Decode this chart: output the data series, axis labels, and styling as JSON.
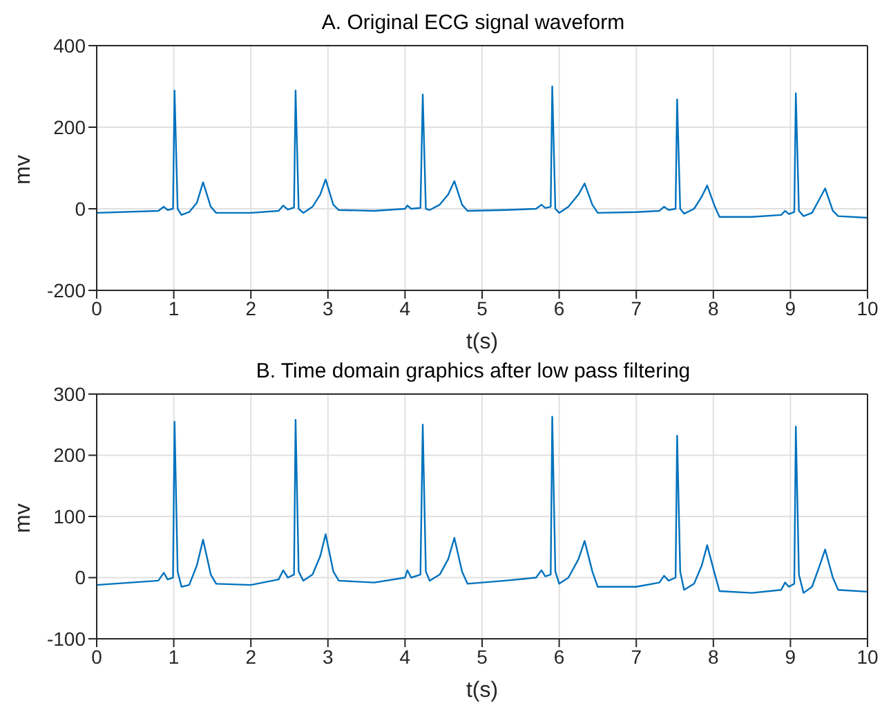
{
  "chart_data": [
    {
      "type": "line",
      "title": "A. Original ECG signal waveform",
      "xlabel": "t(s)",
      "ylabel": "mv",
      "x": [
        0,
        0.8,
        0.87,
        0.92,
        0.99,
        1.01,
        1.05,
        1.1,
        1.2,
        1.3,
        1.38,
        1.48,
        1.55,
        2.0,
        2.36,
        2.42,
        2.48,
        2.56,
        2.58,
        2.62,
        2.68,
        2.8,
        2.9,
        2.97,
        3.07,
        3.14,
        3.6,
        4.0,
        4.03,
        4.08,
        4.2,
        4.23,
        4.27,
        4.32,
        4.45,
        4.56,
        4.64,
        4.74,
        4.81,
        5.3,
        5.7,
        5.77,
        5.82,
        5.89,
        5.91,
        5.95,
        6.0,
        6.12,
        6.25,
        6.33,
        6.43,
        6.5,
        7.0,
        7.3,
        7.36,
        7.42,
        7.51,
        7.53,
        7.57,
        7.62,
        7.75,
        7.85,
        7.92,
        8.02,
        8.08,
        8.5,
        8.88,
        8.93,
        8.98,
        9.05,
        9.07,
        9.11,
        9.17,
        9.28,
        9.38,
        9.45,
        9.55,
        9.62,
        10
      ],
      "series": [
        {
          "color": "#0072bd",
          "values": [
            -10,
            -5,
            5,
            -3,
            0,
            290,
            0,
            -15,
            -8,
            15,
            65,
            5,
            -10,
            -10,
            -5,
            8,
            -2,
            3,
            290,
            0,
            -10,
            5,
            35,
            72,
            10,
            -3,
            -5,
            0,
            8,
            0,
            2,
            280,
            0,
            -3,
            10,
            35,
            68,
            10,
            -5,
            -3,
            0,
            10,
            2,
            5,
            300,
            0,
            -10,
            5,
            35,
            62,
            10,
            -10,
            -8,
            -5,
            5,
            -3,
            0,
            268,
            0,
            -12,
            0,
            30,
            57,
            5,
            -20,
            -20,
            -15,
            -5,
            -13,
            -8,
            283,
            -5,
            -18,
            -10,
            25,
            50,
            -5,
            -18,
            -22
          ]
        }
      ],
      "xlim": [
        0,
        10
      ],
      "xticks": [
        0,
        1,
        2,
        3,
        4,
        5,
        6,
        7,
        8,
        9,
        10
      ],
      "ylim": [
        -200,
        400
      ],
      "yticks": [
        -200,
        0,
        200,
        400
      ],
      "grid": true,
      "legend": false
    },
    {
      "type": "line",
      "title": "B. Time domain graphics after low pass filtering",
      "xlabel": "t(s)",
      "ylabel": "mv",
      "x": [
        0,
        0.8,
        0.87,
        0.92,
        0.99,
        1.01,
        1.05,
        1.1,
        1.2,
        1.3,
        1.38,
        1.48,
        1.55,
        2.0,
        2.36,
        2.42,
        2.48,
        2.56,
        2.58,
        2.62,
        2.68,
        2.8,
        2.9,
        2.97,
        3.07,
        3.14,
        3.6,
        4.0,
        4.03,
        4.08,
        4.2,
        4.23,
        4.27,
        4.32,
        4.45,
        4.56,
        4.64,
        4.74,
        4.81,
        5.3,
        5.7,
        5.77,
        5.82,
        5.89,
        5.91,
        5.95,
        6.0,
        6.12,
        6.25,
        6.33,
        6.43,
        6.5,
        7.0,
        7.3,
        7.36,
        7.42,
        7.51,
        7.53,
        7.57,
        7.62,
        7.75,
        7.85,
        7.92,
        8.02,
        8.08,
        8.5,
        8.88,
        8.93,
        8.98,
        9.05,
        9.07,
        9.11,
        9.17,
        9.28,
        9.38,
        9.45,
        9.55,
        9.62,
        10
      ],
      "series": [
        {
          "color": "#0072bd",
          "values": [
            -12,
            -5,
            8,
            -3,
            0,
            255,
            10,
            -15,
            -12,
            20,
            62,
            5,
            -10,
            -12,
            -3,
            12,
            0,
            5,
            258,
            10,
            -5,
            5,
            35,
            71,
            10,
            -5,
            -8,
            0,
            12,
            0,
            5,
            250,
            10,
            -5,
            5,
            30,
            65,
            10,
            -10,
            -5,
            0,
            12,
            2,
            5,
            263,
            10,
            -10,
            0,
            30,
            60,
            10,
            -15,
            -15,
            -8,
            3,
            -5,
            0,
            232,
            10,
            -20,
            -10,
            20,
            53,
            5,
            -22,
            -25,
            -20,
            -8,
            -15,
            -10,
            247,
            5,
            -25,
            -15,
            20,
            46,
            0,
            -20,
            -23
          ]
        }
      ],
      "xlim": [
        0,
        10
      ],
      "xticks": [
        0,
        1,
        2,
        3,
        4,
        5,
        6,
        7,
        8,
        9,
        10
      ],
      "ylim": [
        -100,
        300
      ],
      "yticks": [
        -100,
        0,
        100,
        200,
        300
      ],
      "grid": true,
      "legend": false
    }
  ]
}
